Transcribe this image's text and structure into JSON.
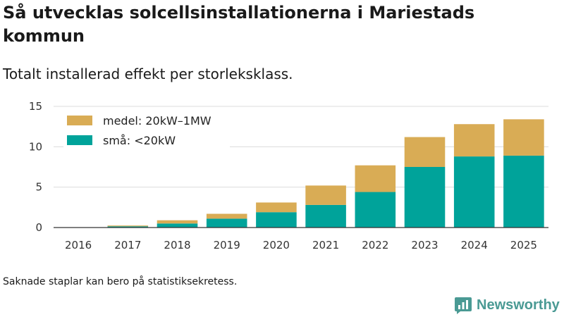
{
  "title": "Så utvecklas solcellsinstallationerna i Mariestads kommun",
  "subtitle": "Totalt installerad effekt per storleksklass.",
  "note": "Saknade staplar kan bero på statistiksekretess.",
  "brand": {
    "name": "Newsworthy",
    "color": "#4a9a94"
  },
  "chart_data": {
    "type": "bar",
    "stacked": true,
    "categories": [
      "2016",
      "2017",
      "2018",
      "2019",
      "2020",
      "2021",
      "2022",
      "2023",
      "2024",
      "2025"
    ],
    "series": [
      {
        "name": "små: <20kW",
        "color": "#00a39a",
        "values": [
          0,
          0.15,
          0.5,
          1.1,
          1.9,
          2.8,
          4.4,
          7.5,
          8.8,
          8.9
        ]
      },
      {
        "name": "medel: 20kW–1MW",
        "color": "#d9ac55",
        "values": [
          0,
          0.1,
          0.4,
          0.6,
          1.2,
          2.4,
          3.3,
          3.7,
          4.0,
          4.5
        ]
      }
    ],
    "legend_order": [
      1,
      0
    ],
    "ylim": [
      0,
      15
    ],
    "yticks": [
      0,
      5,
      10,
      15
    ],
    "xlabel": "",
    "ylabel": "",
    "grid": true,
    "legend_position": "top-left"
  }
}
